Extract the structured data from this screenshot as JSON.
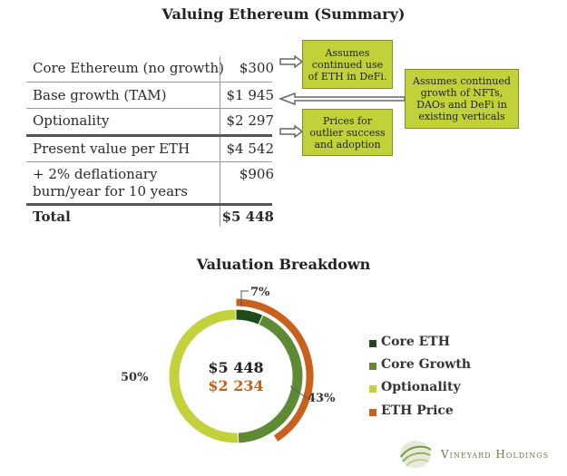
{
  "summary": {
    "title": "Valuing Ethereum (Summary)",
    "rows": [
      {
        "label": "Core Ethereum (no growth)",
        "value": "$300"
      },
      {
        "label": "Base growth (TAM)",
        "value": "$1 945"
      },
      {
        "label": "Optionality",
        "value": "$2 297"
      },
      {
        "label": "Present value per ETH",
        "value": "$4 542"
      },
      {
        "label_line1": "+ 2% deflationary",
        "label_line2": "burn/year for 10 years",
        "value": "$906"
      },
      {
        "label": "Total",
        "value": "$5 448"
      }
    ],
    "notes": [
      {
        "lines": [
          "Assumes",
          "continued use",
          "of ETH in DeFi."
        ]
      },
      {
        "lines": [
          "Assumes continued",
          "growth of NFTs,",
          "DAOs and DeFi in",
          "existing verticals"
        ]
      },
      {
        "lines": [
          "Prices for",
          "outlier success",
          "and adoption"
        ]
      }
    ]
  },
  "breakdown": {
    "title": "Valuation Breakdown",
    "center_total": "$5 448",
    "center_price": "$2 234",
    "pct_labels": {
      "core": "7%",
      "growth": "43%",
      "optionality": "50%"
    }
  },
  "chart_data": {
    "type": "pie",
    "title": "Valuation Breakdown",
    "inner_ring": {
      "categories": [
        "Core ETH",
        "Core Growth",
        "Optionality"
      ],
      "values": [
        300,
        1945,
        2297
      ],
      "percent_labels": [
        "7%",
        "43%",
        "50%"
      ],
      "colors": [
        "#1f4a1a",
        "#5e8a34",
        "#c2d13c"
      ]
    },
    "outer_ring": {
      "categories": [
        "ETH Price"
      ],
      "values": [
        2234
      ],
      "of_total": 5448,
      "color": "#c8611b"
    },
    "legend": [
      "Core ETH",
      "Core Growth",
      "Optionality",
      "ETH Price"
    ],
    "legend_colors": [
      "#1f4a1a",
      "#5e8a34",
      "#c2d13c",
      "#c8611b"
    ]
  },
  "logo": {
    "name": "Vineyard Holdings",
    "icon": "vineyard-leaf-icon"
  }
}
